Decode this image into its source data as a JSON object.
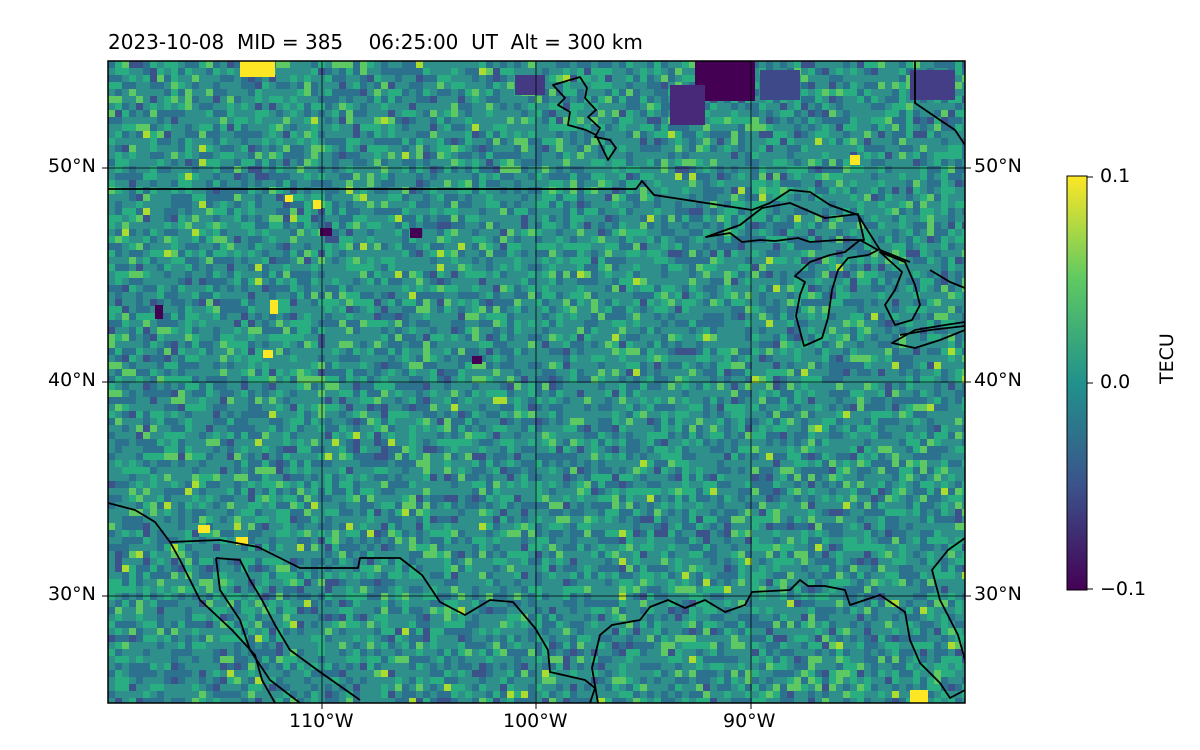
{
  "title": "2023-10-08  MID = 385    06:25:00  UT  Alt = 300 km",
  "map": {
    "lon_range": [
      -120,
      -80
    ],
    "lat_range": [
      25,
      55
    ],
    "lat_ticks": [
      {
        "value": 50,
        "label": "50°N"
      },
      {
        "value": 40,
        "label": "40°N"
      },
      {
        "value": 30,
        "label": "30°N"
      }
    ],
    "lon_ticks": [
      {
        "value": -110,
        "label": "110°W"
      },
      {
        "value": -100,
        "label": "100°W"
      },
      {
        "value": -90,
        "label": "90°W"
      }
    ]
  },
  "colorbar": {
    "colormap": "viridis",
    "min": -0.1,
    "max": 0.1,
    "tick_labels": [
      "0.1",
      "0.0",
      "−0.1"
    ],
    "unit": "TECU"
  },
  "colors": {
    "background_field": "#2f8f8b",
    "coastline": "#000000",
    "gridline": "#000000"
  }
}
